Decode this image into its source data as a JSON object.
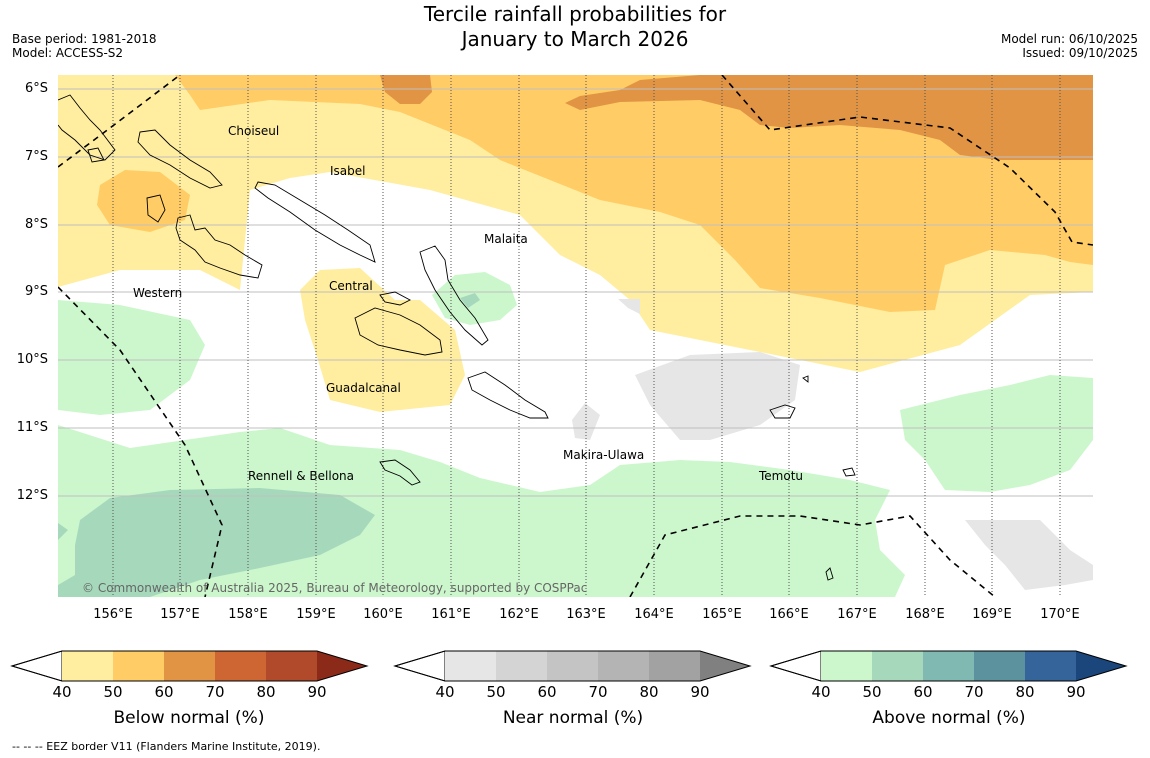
{
  "header": {
    "title_line1": "Tercile rainfall probabilities for",
    "title_line2": "January to March 2026",
    "base_period": "Base period: 1981-2018",
    "model": "Model: ACCESS-S2",
    "model_run": "Model run: 06/10/2025",
    "issued": "Issued: 09/10/2025"
  },
  "map": {
    "lat_labels": [
      "6°S",
      "7°S",
      "8°S",
      "9°S",
      "10°S",
      "11°S",
      "12°S"
    ],
    "lon_labels": [
      "156°E",
      "157°E",
      "158°E",
      "159°E",
      "160°E",
      "161°E",
      "162°E",
      "163°E",
      "164°E",
      "165°E",
      "166°E",
      "167°E",
      "168°E",
      "169°E",
      "170°E"
    ],
    "provinces": {
      "choiseul": "Choiseul",
      "isabel": "Isabel",
      "malaita": "Malaita",
      "western": "Western",
      "central": "Central",
      "guadalcanal": "Guadalcanal",
      "makira": "Makira-Ulawa",
      "rennell": "Rennell & Bellona",
      "temotu": "Temotu"
    },
    "copyright": "© Commonwealth of Australia 2025, Bureau of Meteorology, supported by COSPPac"
  },
  "colorbars": {
    "ticks": [
      "40",
      "50",
      "60",
      "70",
      "80",
      "90"
    ],
    "below": {
      "label": "Below normal (%)",
      "colors": [
        "#ffeea0",
        "#ffcc66",
        "#e09444",
        "#cd6633",
        "#b04a2a",
        "#8c2a1a"
      ]
    },
    "near": {
      "label": "Near normal (%)",
      "colors": [
        "#e6e6e6",
        "#d4d4d4",
        "#c4c4c4",
        "#b4b4b4",
        "#a2a2a2",
        "#808080"
      ]
    },
    "above": {
      "label": "Above normal (%)",
      "colors": [
        "#ccf7cc",
        "#a6d9bc",
        "#80b8b2",
        "#5c929e",
        "#34649a",
        "#1a467c"
      ]
    }
  },
  "footer": {
    "eez_note": "--  --  -- EEZ border V11 (Flanders Marine Institute, 2019)."
  }
}
